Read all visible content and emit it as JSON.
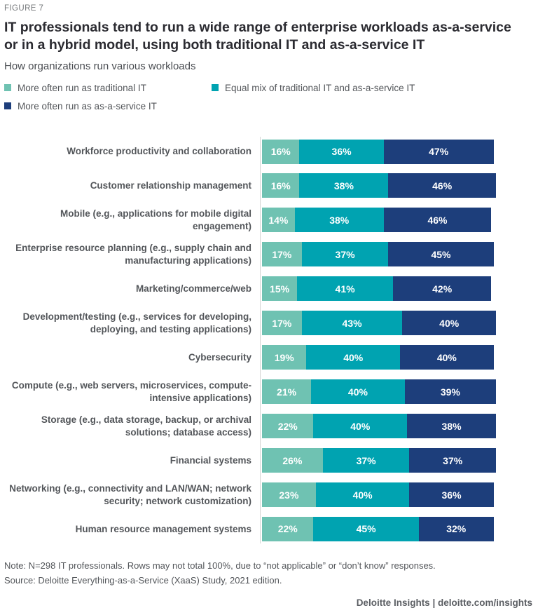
{
  "figure_label": "FIGURE 7",
  "title": "IT professionals tend to run a wide range of enterprise workloads as-a-service or in a hybrid model, using both traditional IT and as-a-service IT",
  "subtitle": "How organizations run various workloads",
  "legend": [
    {
      "label": "More often run as traditional IT",
      "color": "#6fc2b2"
    },
    {
      "label": "Equal mix of traditional IT and as-a-service IT",
      "color": "#00a3b1"
    },
    {
      "label": "More often run as as-a-service IT",
      "color": "#1d3e7b"
    }
  ],
  "chart_data": {
    "type": "bar",
    "orientation": "horizontal",
    "stacked": true,
    "value_suffix": "%",
    "xlim": [
      0,
      100
    ],
    "grid": false,
    "legend_position": "top-left",
    "categories": [
      "Workforce productivity and collaboration",
      "Customer relationship management",
      "Mobile (e.g., applications for mobile digital engagement)",
      "Enterprise resource planning (e.g., supply chain and manufacturing applications)",
      "Marketing/commerce/web",
      "Development/testing (e.g., services for developing, deploying, and testing applications)",
      "Cybersecurity",
      "Compute (e.g., web servers, microservices, compute-intensive applications)",
      "Storage (e.g., data storage, backup, or archival solutions; database access)",
      "Financial systems",
      "Networking (e.g., connectivity and LAN/WAN; network security; network customization)",
      "Human resource management systems"
    ],
    "series": [
      {
        "name": "More often run as traditional IT",
        "color": "#6fc2b2",
        "values": [
          16,
          16,
          14,
          17,
          15,
          17,
          19,
          21,
          22,
          26,
          23,
          22
        ]
      },
      {
        "name": "Equal mix of traditional IT and as-a-service IT",
        "color": "#00a3b1",
        "values": [
          36,
          38,
          38,
          37,
          41,
          43,
          40,
          40,
          40,
          37,
          40,
          45
        ]
      },
      {
        "name": "More often run as as-a-service IT",
        "color": "#1d3e7b",
        "values": [
          47,
          46,
          46,
          45,
          42,
          40,
          40,
          39,
          38,
          37,
          36,
          32
        ]
      }
    ]
  },
  "note": "Note: N=298 IT professionals. Rows may not total 100%, due to “not applicable” or “don’t know” responses.",
  "source": "Source: Deloitte Everything-as-a-Service (XaaS) Study, 2021 edition.",
  "footer": "Deloitte Insights | deloitte.com/insights"
}
